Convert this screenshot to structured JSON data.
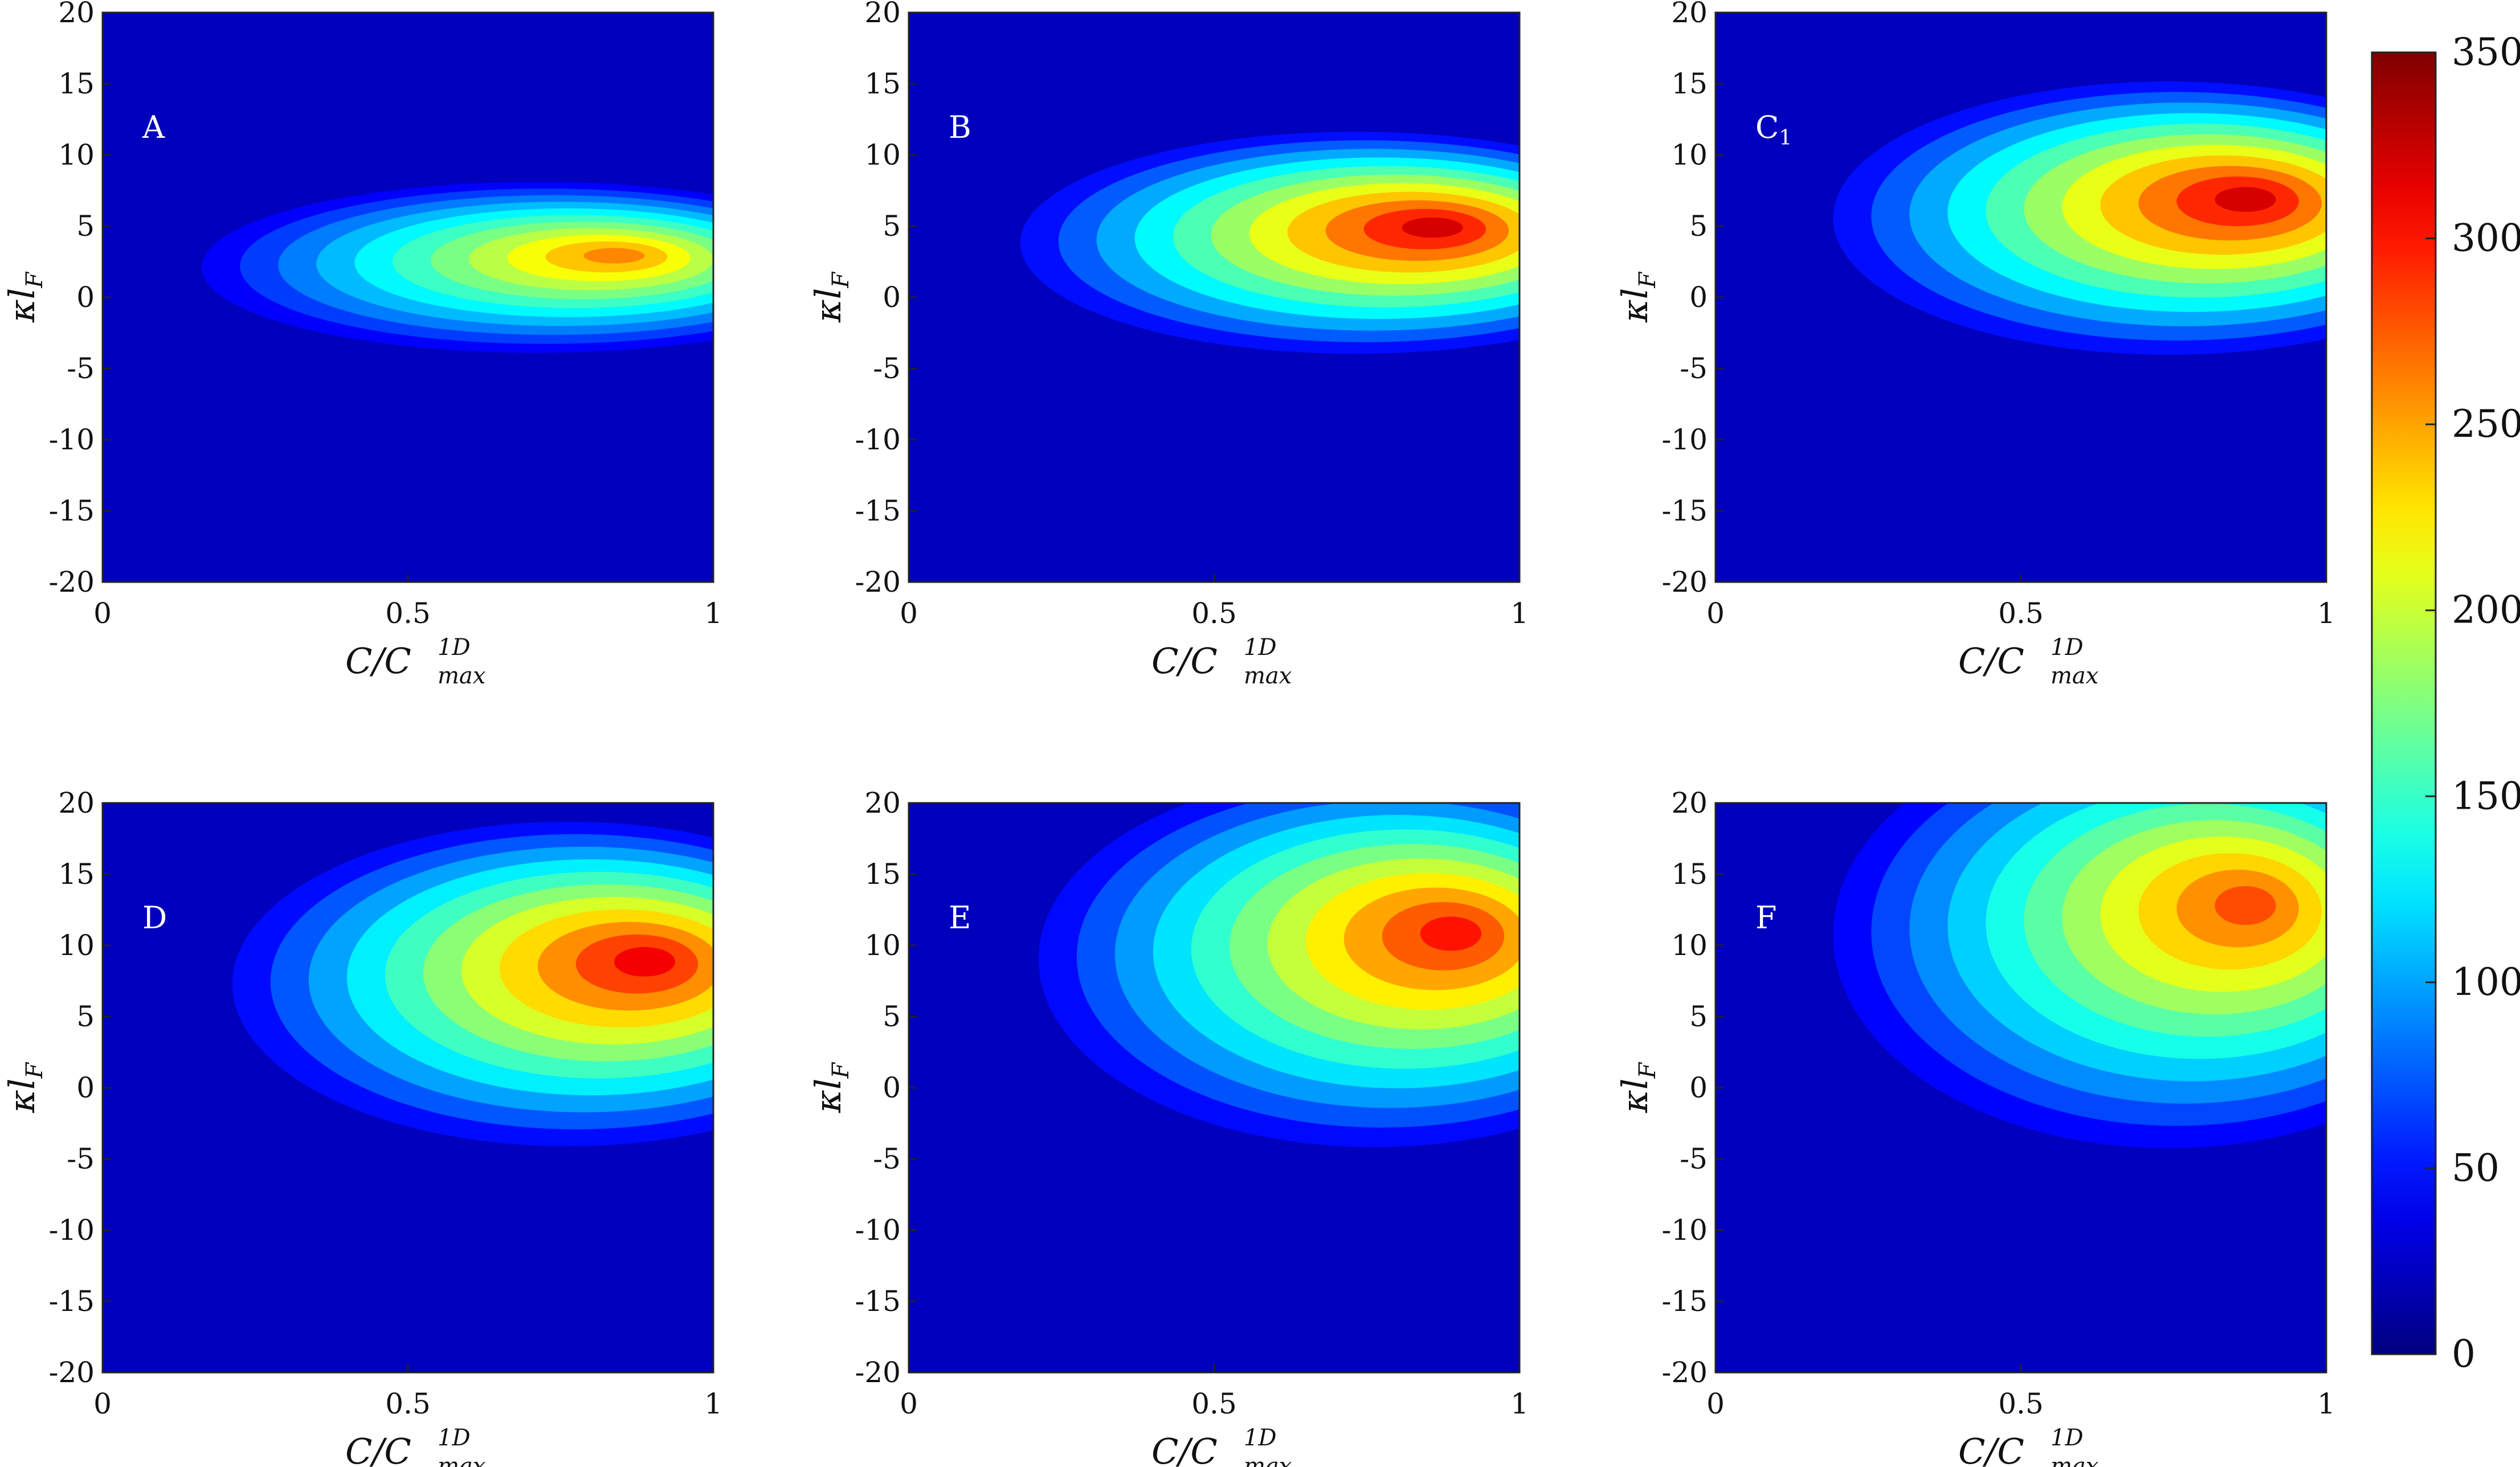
{
  "chart_data": {
    "type": "heatmap",
    "colormap": "jet",
    "colorbar": {
      "range": [
        0,
        350
      ],
      "ticks": [
        "0",
        "50",
        "100",
        "150",
        "200",
        "250",
        "300",
        "350"
      ],
      "tick_values": [
        0,
        50,
        100,
        150,
        200,
        250,
        300,
        350
      ]
    },
    "axes": {
      "xlabel": "C/C",
      "xlabel_super": "1D",
      "xlabel_sub": "max",
      "ylabel": "κl",
      "ylabel_sub": "F",
      "xlim": [
        0,
        1
      ],
      "ylim": [
        -20,
        20
      ],
      "xticks": [
        "0",
        "0.5",
        "1"
      ],
      "xtick_values": [
        0,
        0.5,
        1
      ],
      "yticks": [
        "20",
        "15",
        "10",
        "5",
        "0",
        "-5",
        "-10",
        "-15",
        "-20"
      ],
      "ytick_values": [
        20,
        15,
        10,
        5,
        0,
        -5,
        -10,
        -15,
        -20
      ]
    },
    "panels": [
      {
        "name": "A",
        "sub": "",
        "peak_value": 260,
        "peak_x": 0.85,
        "peak_y": 3
      },
      {
        "name": "B",
        "sub": "",
        "peak_value": 320,
        "peak_x": 0.87,
        "peak_y": 5
      },
      {
        "name": "C",
        "sub": "1",
        "peak_value": 320,
        "peak_x": 0.88,
        "peak_y": 7
      },
      {
        "name": "D",
        "sub": "",
        "peak_value": 310,
        "peak_x": 0.9,
        "peak_y": 9
      },
      {
        "name": "E",
        "sub": "",
        "peak_value": 300,
        "peak_x": 0.9,
        "peak_y": 11
      },
      {
        "name": "F",
        "sub": "",
        "peak_value": 280,
        "peak_x": 0.88,
        "peak_y": 13
      }
    ]
  }
}
